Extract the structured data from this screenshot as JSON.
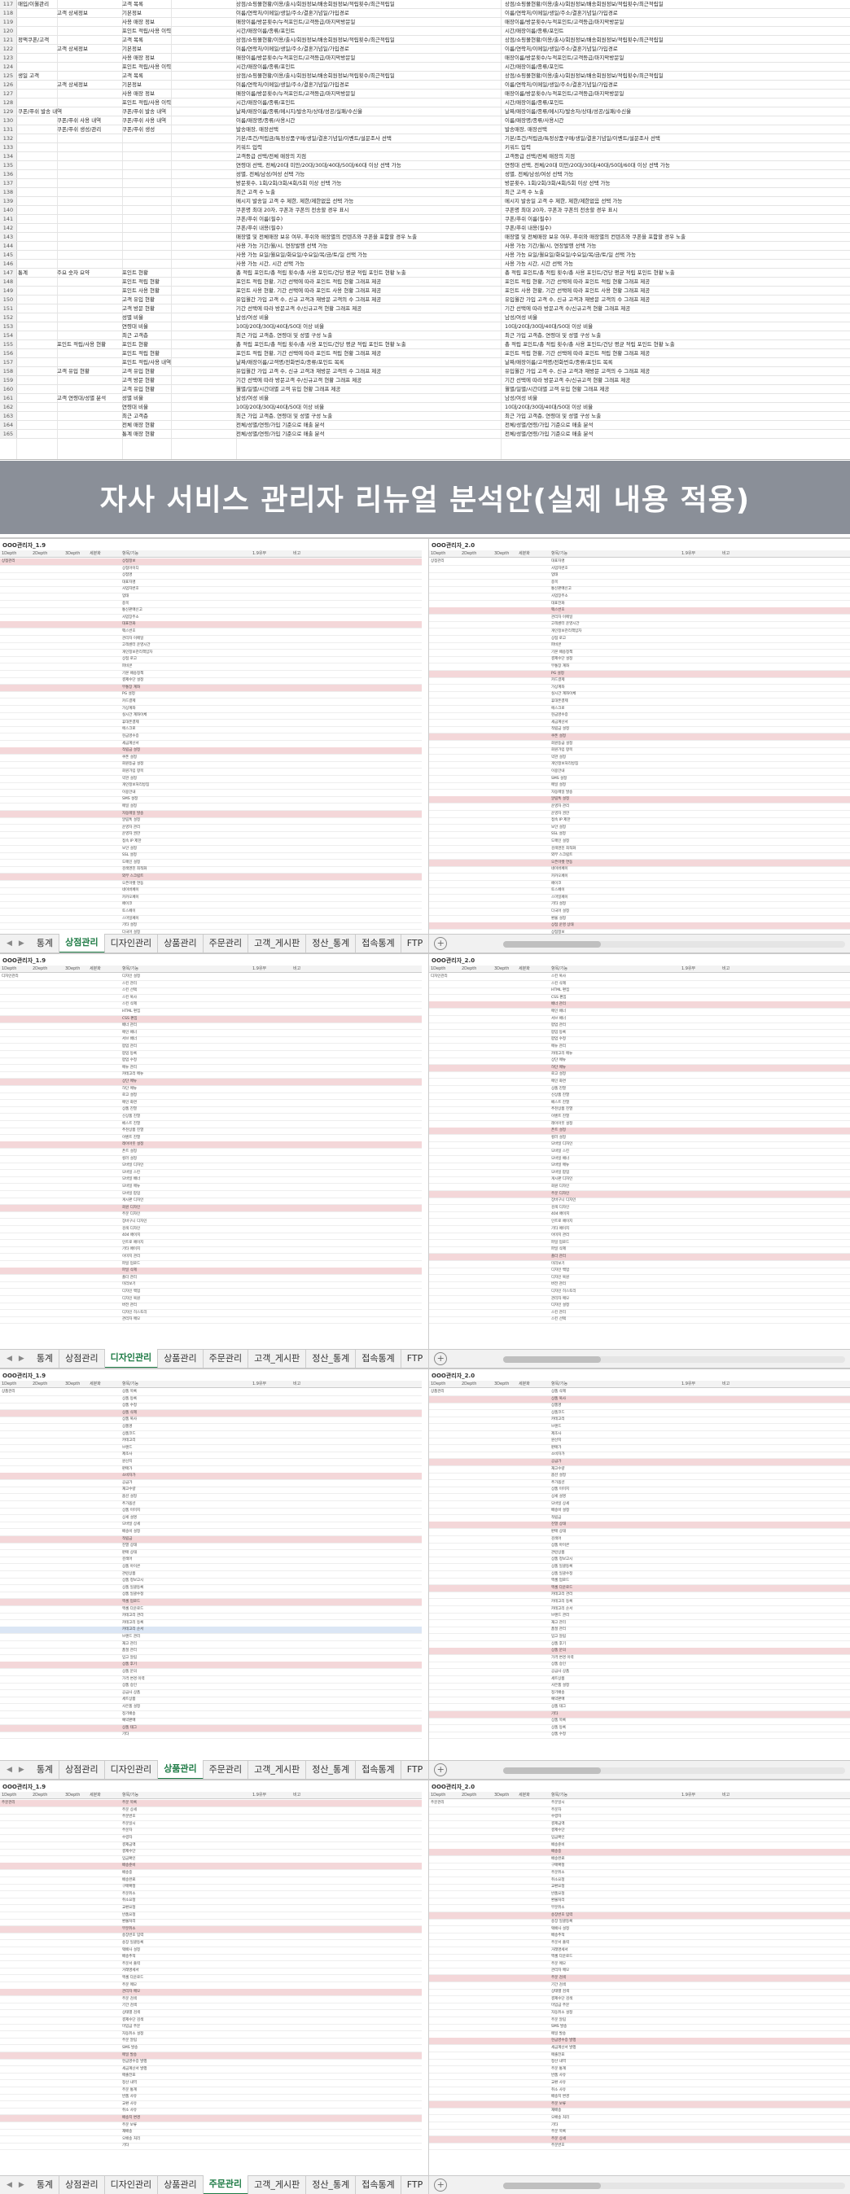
{
  "top_sheet": {
    "rows": [
      {
        "n": "117",
        "c1": "매입/이월관리",
        "c2": "",
        "c3": "고객 목록",
        "c4": "",
        "c5": "상점/쇼핑몰현황/이용/출시/회원정보/배송회원정보/적립횟수/최근적립일",
        "c6": "상점/쇼핑몰현황/이용/출시/회원정보/배송회원정보/적립횟수/최근적립일"
      },
      {
        "n": "118",
        "c1": "",
        "c2": "고객 상세정보",
        "c3": "기본정보",
        "c4": "",
        "c5": "이름/연락처/이메일/생일/주소/결혼기념일/가입경로",
        "c6": "이름/연락처/이메일/생일/주소/결혼기념일/가입경로"
      },
      {
        "n": "119",
        "c1": "",
        "c2": "",
        "c3": "사용 매장 정보",
        "c4": "",
        "c5": "매장이름/방문횟수/누적포인트/고객등급/마지막방문일",
        "c6": "매장이름/방문횟수/누적포인트/고객등급/마지막방문일"
      },
      {
        "n": "120",
        "c1": "",
        "c2": "",
        "c3": "포인트 적립/사용 이력",
        "c4": "",
        "c5": "시간/매장이름/종류/포인트",
        "c6": "시간/매장이름/종류/포인트"
      },
      {
        "n": "121",
        "c1": "정액쿠폰/고객",
        "c2": "",
        "c3": "고객 목록",
        "c4": "",
        "c5": "상점/쇼핑몰현황/이용/출시/회원정보/배송회원정보/적립횟수/최근적립일",
        "c6": "상점/쇼핑몰현황/이용/출시/회원정보/배송회원정보/적립횟수/최근적립일"
      },
      {
        "n": "122",
        "c1": "",
        "c2": "고객 상세정보",
        "c3": "기본정보",
        "c4": "",
        "c5": "이름/연락처/이메일/생일/주소/결혼기념일/가입경로",
        "c6": "이름/연락처/이메일/생일/주소/결혼기념일/가입경로"
      },
      {
        "n": "123",
        "c1": "",
        "c2": "",
        "c3": "사용 매장 정보",
        "c4": "",
        "c5": "매장이름/방문횟수/누적포인트/고객등급/마지막방문일",
        "c6": "매장이름/방문횟수/누적포인트/고객등급/마지막방문일"
      },
      {
        "n": "124",
        "c1": "",
        "c2": "",
        "c3": "포인트 적립/사용 이력",
        "c4": "",
        "c5": "시간/매장이름/종류/포인트",
        "c6": "시간/매장이름/종류/포인트"
      },
      {
        "n": "125",
        "c1": "생일 고객",
        "c2": "",
        "c3": "고객 목록",
        "c4": "",
        "c5": "상점/쇼핑몰현황/이용/출시/회원정보/배송회원정보/적립횟수/최근적립일",
        "c6": "상점/쇼핑몰현황/이용/출시/회원정보/배송회원정보/적립횟수/최근적립일"
      },
      {
        "n": "126",
        "c1": "",
        "c2": "고객 상세정보",
        "c3": "기본정보",
        "c4": "",
        "c5": "이름/연락처/이메일/생일/주소/결혼기념일/가입경로",
        "c6": "이름/연락처/이메일/생일/주소/결혼기념일/가입경로"
      },
      {
        "n": "127",
        "c1": "",
        "c2": "",
        "c3": "사용 매장 정보",
        "c4": "",
        "c5": "매장이름/방문횟수/누적포인트/고객등급/마지막방문일",
        "c6": "매장이름/방문횟수/누적포인트/고객등급/마지막방문일"
      },
      {
        "n": "128",
        "c1": "",
        "c2": "",
        "c3": "포인트 적립/사용 이력",
        "c4": "",
        "c5": "시간/매장이름/종류/포인트",
        "c6": "시간/매장이름/종류/포인트"
      },
      {
        "n": "129",
        "c1": "쿠폰/푸쉬 발송 내역",
        "c2": "",
        "c3": "쿠폰/푸쉬 발송 내역",
        "c4": "",
        "c5": "날짜/매장이름/종류/메시지/발송자/상태/성공/실패/수신율",
        "c6": "날짜/매장이름/종류/메시지/발송자/상태/성공/실패/수신율"
      },
      {
        "n": "130",
        "c1": "",
        "c2": "쿠폰/푸쉬 사용 내역",
        "c3": "쿠폰/푸쉬 사용 내역",
        "c4": "",
        "c5": "이름/매장명/종류/사용시간",
        "c6": "이름/매장명/종류/사용시간"
      },
      {
        "n": "131",
        "c1": "",
        "c2": "쿠폰/푸쉬 생성/관리",
        "c3": "쿠폰/푸쉬 생성",
        "c4": "",
        "c5": "발송매장, 매장선택",
        "c6": "발송매장, 매장선택"
      },
      {
        "n": "132",
        "c1": "",
        "c2": "",
        "c3": "",
        "c4": "",
        "c5": "기본/조건/적립금/특정상품구매/생일/결혼기념일/이벤트/설문조사 선택",
        "c6": "기본/조건/적립금/특정상품구매/생일/결혼기념일/이벤트/설문조사 선택"
      },
      {
        "n": "133",
        "c1": "",
        "c2": "",
        "c3": "",
        "c4": "",
        "c5": "키워드 입력",
        "c6": "키워드 입력"
      },
      {
        "n": "134",
        "c1": "",
        "c2": "",
        "c3": "",
        "c4": "",
        "c5": "고객등급 선택/전체 매장의 지점",
        "c6": "고객등급 선택/전체 매장의 지점"
      },
      {
        "n": "135",
        "c1": "",
        "c2": "",
        "c3": "",
        "c4": "",
        "c5": "연령대 선택, 전체/20대 미만/20대/30대/40대/50대/60대 이상 선택 가능",
        "c6": "연령대 선택, 전체/20대 미만/20대/30대/40대/50대/60대 이상 선택 가능"
      },
      {
        "n": "136",
        "c1": "",
        "c2": "",
        "c3": "",
        "c4": "",
        "c5": "성별, 전체/남성/여성 선택 가능",
        "c6": "성별, 전체/남성/여성 선택 가능"
      },
      {
        "n": "137",
        "c1": "",
        "c2": "",
        "c3": "",
        "c4": "",
        "c5": "방문횟수, 1회/2회/3회/4회/5회 이상 선택 가능",
        "c6": "방문횟수, 1회/2회/3회/4회/5회 이상 선택 가능"
      },
      {
        "n": "138",
        "c1": "",
        "c2": "",
        "c3": "",
        "c4": "",
        "c5": "최근 고객 수 노출",
        "c6": "최근 고객 수 노출"
      },
      {
        "n": "139",
        "c1": "",
        "c2": "",
        "c3": "",
        "c4": "",
        "c5": "메시지 발송일 고객 수 제한, 제한/제한없음 선택 가능",
        "c6": "메시지 발송일 고객 수 제한, 제한/제한없음 선택 가능"
      },
      {
        "n": "140",
        "c1": "",
        "c2": "",
        "c3": "",
        "c4": "",
        "c5": "쿠폰명 최대 20자, 쿠폰과 쿠폰의 전송할 경우 표시",
        "c6": "쿠폰명 최대 20자, 쿠폰과 쿠폰의 전송할 경우 표시"
      },
      {
        "n": "141",
        "c1": "",
        "c2": "",
        "c3": "",
        "c4": "",
        "c5": "쿠폰/푸쉬 이름(필수)",
        "c6": "쿠폰/푸쉬 이름(필수)"
      },
      {
        "n": "142",
        "c1": "",
        "c2": "",
        "c3": "",
        "c4": "",
        "c5": "쿠폰/푸쉬 내용(필수)",
        "c6": "쿠폰/푸쉬 내용(필수)"
      },
      {
        "n": "143",
        "c1": "",
        "c2": "",
        "c3": "",
        "c4": "",
        "c5": "매장별 및 전체매장 보유 여부, 푸쉬와 매장별의 컨텐츠와 쿠폰을 포함할 경우 노출",
        "c6": "매장별 및 전체매장 보유 여부, 푸쉬와 매장별의 컨텐츠와 쿠폰을 포함할 경우 노출"
      },
      {
        "n": "144",
        "c1": "",
        "c2": "",
        "c3": "",
        "c4": "",
        "c5": "사용 가능 기간/월/시, 연장발행 선택 가능",
        "c6": "사용 가능 기간/월/시, 연장발행 선택 가능"
      },
      {
        "n": "145",
        "c1": "",
        "c2": "",
        "c3": "",
        "c4": "",
        "c5": "사용 가능 요일/월요일/화요일/수요일/목/금/토/일 선택 가능",
        "c6": "사용 가능 요일/월요일/화요일/수요일/목/금/토/일 선택 가능"
      },
      {
        "n": "146",
        "c1": "",
        "c2": "",
        "c3": "",
        "c4": "",
        "c5": "사용 가능 시간, 시간 선택 가능",
        "c6": "사용 가능 시간, 시간 선택 가능"
      },
      {
        "n": "147",
        "c1": "통계",
        "c2": "주요 숫자 요약",
        "c3": "포인트 현황",
        "c4": "",
        "c5": "총 적립 포인트/총 적립 횟수/총 사용 포인트/건당 평균 적립 포인트 현황 노출",
        "c6": "총 적립 포인트/총 적립 횟수/총 사용 포인트/건당 평균 적립 포인트 현황 노출"
      },
      {
        "n": "148",
        "c1": "",
        "c2": "",
        "c3": "포인트 적립 현황",
        "c4": "",
        "c5": "포인트 적립 현황, 기간 선택에 따라 포인트 적립 현황 그래프 제공",
        "c6": "포인트 적립 현황, 기간 선택에 따라 포인트 적립 현황 그래프 제공"
      },
      {
        "n": "149",
        "c1": "",
        "c2": "",
        "c3": "포인트 사용 현황",
        "c4": "",
        "c5": "포인트 사용 현황, 기간 선택에 따라 포인트 사용 현황 그래프 제공",
        "c6": "포인트 사용 현황, 기간 선택에 따라 포인트 사용 현황 그래프 제공"
      },
      {
        "n": "150",
        "c1": "",
        "c2": "",
        "c3": "고객 유입 현황",
        "c4": "",
        "c5": "유입월간 가입 고객 수, 신규 고객과 재방문 고객의 수 그래프 제공",
        "c6": "유입월간 가입 고객 수, 신규 고객과 재방문 고객의 수 그래프 제공"
      },
      {
        "n": "151",
        "c1": "",
        "c2": "",
        "c3": "고객 방문 현황",
        "c4": "",
        "c5": "기간 선택에 따라 방문고객 수/신규고객 현황 그래프 제공",
        "c6": "기간 선택에 따라 방문고객 수/신규고객 현황 그래프 제공"
      },
      {
        "n": "152",
        "c1": "",
        "c2": "",
        "c3": "성별 비율",
        "c4": "",
        "c5": "남성/여성 비율",
        "c6": "남성/여성 비율"
      },
      {
        "n": "153",
        "c1": "",
        "c2": "",
        "c3": "연령대 비율",
        "c4": "",
        "c5": "10대/20대/30대/40대/50대 이상 비율",
        "c6": "10대/20대/30대/40대/50대 이상 비율"
      },
      {
        "n": "154",
        "c1": "",
        "c2": "",
        "c3": "최근 고객층",
        "c4": "",
        "c5": "최근 가입 고객층, 연령대 및 성별 구성 노출",
        "c6": "최근 가입 고객층, 연령대 및 성별 구성 노출"
      },
      {
        "n": "155",
        "c1": "",
        "c2": "포인트 적립/사용 현황",
        "c3": "포인트 현황",
        "c4": "",
        "c5": "총 적립 포인트/총 적립 횟수/총 사용 포인트/건당 평균 적립 포인트 현황 노출",
        "c6": "총 적립 포인트/총 적립 횟수/총 사용 포인트/건당 평균 적립 포인트 현황 노출"
      },
      {
        "n": "156",
        "c1": "",
        "c2": "",
        "c3": "포인트 적립 현황",
        "c4": "",
        "c5": "포인트 적립 현황, 기간 선택에 따라 포인트 적립 현황 그래프 제공",
        "c6": "포인트 적립 현황, 기간 선택에 따라 포인트 적립 현황 그래프 제공"
      },
      {
        "n": "157",
        "c1": "",
        "c2": "",
        "c3": "포인트 적립/사용 내역",
        "c4": "",
        "c5": "날짜/매장이름/고객명/전화번호/종류/포인트 목록",
        "c6": "날짜/매장이름/고객명/전화번호/종류/포인트 목록"
      },
      {
        "n": "158",
        "c1": "",
        "c2": "고객 유입 현황",
        "c3": "고객 유입 현황",
        "c4": "",
        "c5": "유입월간 가입 고객 수, 신규 고객과 재방문 고객의 수 그래프 제공",
        "c6": "유입월간 가입 고객 수, 신규 고객과 재방문 고객의 수 그래프 제공"
      },
      {
        "n": "159",
        "c1": "",
        "c2": "",
        "c3": "고객 방문 현황",
        "c4": "",
        "c5": "기간 선택에 따라 방문고객 수/신규고객 현황 그래프 제공",
        "c6": "기간 선택에 따라 방문고객 수/신규고객 현황 그래프 제공"
      },
      {
        "n": "160",
        "c1": "",
        "c2": "",
        "c3": "고객 유입 현황",
        "c4": "",
        "c5": "월별/일별/시간대별 고객 유입 현황 그래프 제공",
        "c6": "월별/일별/시간대별 고객 유입 현황 그래프 제공"
      },
      {
        "n": "161",
        "c1": "",
        "c2": "고객 연령대/성별 분석",
        "c3": "성별 비율",
        "c4": "",
        "c5": "남성/여성 비율",
        "c6": "남성/여성 비율"
      },
      {
        "n": "162",
        "c1": "",
        "c2": "",
        "c3": "연령대 비율",
        "c4": "",
        "c5": "10대/20대/30대/40대/50대 이상 비율",
        "c6": "10대/20대/30대/40대/50대 이상 비율"
      },
      {
        "n": "163",
        "c1": "",
        "c2": "",
        "c3": "최근 고객층",
        "c4": "",
        "c5": "최근 가입 고객층, 연령대 및 성별 구성 노출",
        "c6": "최근 가입 고객층, 연령대 및 성별 구성 노출"
      },
      {
        "n": "164",
        "c1": "",
        "c2": "",
        "c3": "전체 매장 현황",
        "c4": "",
        "c5": "전체/성별/연령/가입 기준으로 매출 분석",
        "c6": "전체/성별/연령/가입 기준으로 매출 분석"
      },
      {
        "n": "165",
        "c1": "",
        "c2": "",
        "c3": "통계 매장 현황",
        "c4": "",
        "c5": "전체/성별/연령/가입 기준으로 매출 분석",
        "c6": "전체/성별/연령/가입 기준으로 매출 분석"
      }
    ]
  },
  "banner": {
    "title": "자사 서비스 관리자 리뉴얼 분석안(실제 내용 적용)"
  },
  "tabs": [
    "통계",
    "상점관리",
    "디자인관리",
    "상품관리",
    "주문관리",
    "고객_게시판",
    "정산_통계",
    "접속통계",
    "FTP"
  ],
  "shots": [
    {
      "active_tab": 1,
      "left_title": "OOO관리자_1.9",
      "right_title": "OOO관리자_2.0",
      "headers": [
        "1Depth",
        "2Depth",
        "3Depth",
        "세분화",
        "항목/기능",
        "1.9유무",
        "비고"
      ],
      "left_col1": [
        "상점관리",
        "",
        "",
        "",
        "",
        "",
        "",
        "",
        "",
        "",
        "",
        "",
        "",
        "",
        "",
        "",
        "",
        "",
        "",
        "",
        "",
        "",
        "",
        "",
        "",
        "",
        "",
        "",
        "",
        "",
        "",
        "",
        "",
        "",
        "",
        "",
        "",
        "",
        "",
        "",
        "",
        "",
        "",
        "",
        "",
        "",
        "",
        "",
        "",
        "",
        "",
        "",
        "",
        "",
        "",
        "",
        "",
        ""
      ],
      "right_col1": [
        "상점관리",
        "",
        "",
        "",
        "",
        "",
        "",
        "",
        "",
        "",
        "",
        "",
        "",
        "",
        "",
        "",
        "",
        "",
        "",
        "",
        "",
        "",
        "",
        "",
        "",
        "",
        "",
        "",
        "",
        "",
        "",
        "",
        "",
        "",
        "",
        "",
        "",
        "",
        "",
        "",
        "",
        "",
        "",
        "",
        "",
        "",
        "",
        "",
        "",
        "",
        "",
        "",
        "",
        "",
        "",
        "",
        ""
      ],
      "items": [
        "상점정보",
        "상점아이디",
        "상점명",
        "대표자명",
        "사업자번호",
        "업태",
        "종목",
        "통신판매신고",
        "사업장주소",
        "대표전화",
        "팩스번호",
        "관리자 이메일",
        "고객센터 운영시간",
        "개인정보관리책임자",
        "상점 로고",
        "파비콘",
        "기본 배송정책",
        "결제수단 설정",
        "무통장 계좌",
        "PG 설정",
        "카드결제",
        "가상계좌",
        "실시간 계좌이체",
        "휴대폰결제",
        "에스크로",
        "현금영수증",
        "세금계산서",
        "적립금 설정",
        "쿠폰 설정",
        "회원등급 설정",
        "회원가입 항목",
        "약관 설정",
        "개인정보처리방침",
        "이용안내",
        "SMS 설정",
        "메일 설정",
        "자동메일 발송",
        "알림톡 설정",
        "운영자 관리",
        "운영자 권한",
        "접속 IP 제한",
        "보안 설정",
        "SSL 설정",
        "도메인 설정",
        "검색엔진 최적화",
        "외부 스크립트",
        "오픈마켓 연동",
        "네이버페이",
        "카카오페이",
        "페이코",
        "토스페이",
        "스마일페이",
        "기타 설정",
        "다국어 설정",
        "환율 설정",
        "상점 운영 상태"
      ]
    },
    {
      "active_tab": 2,
      "left_title": "OOO관리자_1.9",
      "right_title": "OOO관리자_2.0",
      "headers": [
        "1Depth",
        "2Depth",
        "3Depth",
        "세분화",
        "항목/기능",
        "1.9유무",
        "비고"
      ],
      "left_col1": [
        "디자인관리"
      ],
      "right_col1": [
        "디자인관리"
      ],
      "items": [
        "디자인 설정",
        "스킨 관리",
        "스킨 선택",
        "스킨 복사",
        "스킨 삭제",
        "HTML 편집",
        "CSS 편집",
        "배너 관리",
        "메인 배너",
        "서브 배너",
        "팝업 관리",
        "팝업 등록",
        "팝업 수정",
        "메뉴 관리",
        "카테고리 메뉴",
        "상단 메뉴",
        "하단 메뉴",
        "로고 설정",
        "메인 화면",
        "상품 진열",
        "신상품 진열",
        "베스트 진열",
        "추천상품 진열",
        "이벤트 진열",
        "레이아웃 설정",
        "폰트 설정",
        "컬러 설정",
        "모바일 디자인",
        "모바일 스킨",
        "모바일 배너",
        "모바일 메뉴",
        "모바일 팝업",
        "게시판 디자인",
        "회원 디자인",
        "주문 디자인",
        "장바구니 디자인",
        "검색 디자인",
        "404 페이지",
        "인트로 페이지",
        "기타 페이지",
        "이미지 관리",
        "파일 업로드",
        "파일 삭제",
        "폴더 관리",
        "미리보기",
        "디자인 백업",
        "디자인 복원",
        "버전 관리",
        "디자인 히스토리",
        "관리자 메모"
      ]
    },
    {
      "active_tab": 3,
      "left_title": "OOO관리자_1.9",
      "right_title": "OOO관리자_2.0",
      "headers": [
        "1Depth",
        "2Depth",
        "3Depth",
        "세분화",
        "항목/기능",
        "1.9유무",
        "비고"
      ],
      "left_col1": [
        "상품관리"
      ],
      "right_col1": [
        "상품관리"
      ],
      "items": [
        "상품 목록",
        "상품 등록",
        "상품 수정",
        "상품 삭제",
        "상품 복사",
        "상품명",
        "상품코드",
        "카테고리",
        "브랜드",
        "제조사",
        "원산지",
        "판매가",
        "소비자가",
        "공급가",
        "재고수량",
        "옵션 설정",
        "추가옵션",
        "상품 이미지",
        "상세 설명",
        "모바일 상세",
        "배송비 설정",
        "적립금",
        "진열 상태",
        "판매 상태",
        "검색어",
        "상품 아이콘",
        "관련상품",
        "상품 정보고시",
        "상품 일괄등록",
        "상품 일괄수정",
        "엑셀 업로드",
        "엑셀 다운로드",
        "카테고리 관리",
        "카테고리 등록",
        "카테고리 순서",
        "브랜드 관리",
        "재고 관리",
        "품절 관리",
        "입고 알림",
        "상품 후기",
        "상품 문의",
        "가격 변경 이력",
        "상품 승인",
        "공급사 상품",
        "세트상품",
        "사은품 설정",
        "정기배송",
        "예약판매",
        "상품 태그",
        "기타"
      ]
    },
    {
      "active_tab": 4,
      "left_title": "OOO관리자_1.9",
      "right_title": "OOO관리자_2.0",
      "headers": [
        "1Depth",
        "2Depth",
        "3Depth",
        "세분화",
        "항목/기능",
        "1.9유무",
        "비고"
      ],
      "left_col1": [
        "주문관리"
      ],
      "right_col1": [
        "주문관리"
      ],
      "items": [
        "주문 목록",
        "주문 상세",
        "주문번호",
        "주문일시",
        "주문자",
        "수령자",
        "결제금액",
        "결제수단",
        "입금확인",
        "배송준비",
        "배송중",
        "배송완료",
        "구매확정",
        "주문취소",
        "취소요청",
        "교환요청",
        "반품요청",
        "환불처리",
        "부분취소",
        "송장번호 입력",
        "송장 일괄등록",
        "택배사 설정",
        "배송추적",
        "주문서 출력",
        "거래명세서",
        "엑셀 다운로드",
        "주문 메모",
        "관리자 메모",
        "주문 검색",
        "기간 검색",
        "상태별 검색",
        "결제수단 검색",
        "미입금 주문",
        "자동취소 설정",
        "주문 알림",
        "SMS 발송",
        "메일 발송",
        "현금영수증 발행",
        "세금계산서 발행",
        "매출전표",
        "정산 내역",
        "주문 통계",
        "반품 사유",
        "교환 사유",
        "취소 사유",
        "배송지 변경",
        "주문 보류",
        "재배송",
        "오배송 처리",
        "기타"
      ]
    }
  ],
  "colors": {
    "banner_bg": "#8a8f98",
    "highlight_row": "#f4d7d9",
    "active_tab": "#1e7b45"
  }
}
